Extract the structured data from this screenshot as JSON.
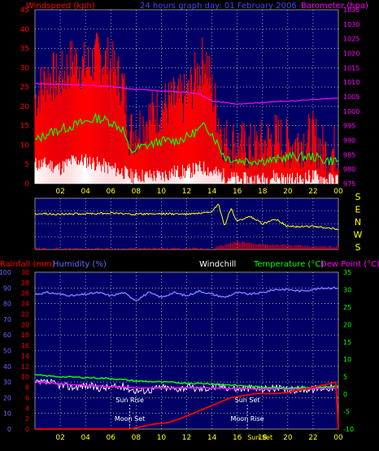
{
  "colors": {
    "background": "#000000",
    "plot_bg": "#000066",
    "grid": "#ffffff",
    "wind_gust": "#ff0000",
    "wind_avg": "#00ff00",
    "wind_low": "#ffffff",
    "barometer": "#ff00ff",
    "direction": "#ffff00",
    "humidity": "#7777ff",
    "temperature": "#00ff00",
    "dewpoint": "#ff00ff",
    "windchill": "#ffffff",
    "rainfall": "#ff0000",
    "ticks_x": "#ffff00",
    "axis_left1": "#ff0000",
    "axis_left2": "#6666ff",
    "axis_right": "#00ff00",
    "baro_axis": "#ff00ff"
  },
  "chart_data": [
    {
      "type": "line",
      "header": {
        "left": "Windspeed (kph)",
        "center": "24 hours graph day: 01 February 2006",
        "right": "Barometer (hpa)"
      },
      "x_ticks": [
        "02",
        "04",
        "06",
        "08",
        "10",
        "12",
        "14",
        "16",
        "18",
        "20",
        "22",
        "00"
      ],
      "y_left": {
        "label": "Windspeed (kph)",
        "range": [
          0,
          45
        ],
        "ticks": [
          "0",
          "5",
          "10",
          "15",
          "20",
          "25",
          "30",
          "35",
          "40",
          "45"
        ]
      },
      "y_right": {
        "label": "Barometer (hpa)",
        "range": [
          975,
          1035
        ],
        "ticks": [
          "975",
          "980",
          "985",
          "990",
          "995",
          "1000",
          "1005",
          "1010",
          "1015",
          "1020",
          "1025",
          "1030",
          "1035"
        ]
      },
      "series": [
        {
          "name": "gust",
          "x": [
            0,
            1,
            2,
            3,
            4,
            5,
            6,
            7,
            7.5,
            8,
            9,
            10,
            11,
            12,
            13,
            13.5,
            14,
            15,
            16,
            17,
            18,
            19,
            20,
            21,
            22,
            23,
            24
          ],
          "values": [
            22,
            28,
            27,
            32,
            30,
            33,
            31,
            25,
            13,
            14,
            17,
            20,
            21,
            22,
            30,
            33,
            24,
            11,
            10,
            9,
            10,
            12,
            10,
            11,
            12,
            8,
            9
          ]
        },
        {
          "name": "average",
          "x": [
            0,
            1,
            2,
            3,
            4,
            5,
            6,
            7,
            7.5,
            8,
            9,
            10,
            11,
            12,
            13,
            13.5,
            14,
            15,
            16,
            17,
            18,
            19,
            20,
            21,
            22,
            23,
            24
          ],
          "values": [
            11,
            13,
            14,
            15,
            16,
            17,
            16,
            14,
            8,
            9,
            10,
            11,
            11,
            12,
            14,
            15,
            13,
            7,
            6,
            6,
            6,
            6,
            7,
            7,
            7,
            6,
            6
          ]
        },
        {
          "name": "minimum",
          "x": [
            0,
            1,
            2,
            3,
            4,
            5,
            6,
            7,
            7.5,
            8,
            9,
            10,
            11,
            12,
            13,
            13.5,
            14,
            15,
            16,
            17,
            18,
            19,
            20,
            21,
            22,
            23,
            24
          ],
          "values": [
            5,
            5,
            4,
            6,
            6,
            5,
            4,
            3,
            2,
            2,
            2,
            2,
            3,
            3,
            4,
            4,
            3,
            2,
            1,
            1,
            1,
            2,
            1,
            1,
            2,
            1,
            1
          ]
        },
        {
          "name": "barometer",
          "x": [
            0,
            2,
            4,
            6,
            8,
            10,
            12,
            13,
            14,
            16,
            18,
            20,
            22,
            24
          ],
          "values": [
            1009.5,
            1009.3,
            1009,
            1008.5,
            1007.5,
            1007,
            1006.5,
            1006,
            1003.5,
            1002.5,
            1003,
            1003.5,
            1004,
            1004.5
          ]
        }
      ]
    },
    {
      "type": "line",
      "compass_labels": [
        "S",
        "E",
        "N",
        "W",
        "S"
      ],
      "x_ticks": [
        "02",
        "04",
        "06",
        "08",
        "10",
        "12",
        "14",
        "16",
        "18",
        "20",
        "22",
        "00"
      ],
      "series": [
        {
          "name": "direction",
          "x": [
            0,
            2,
            4,
            6,
            8,
            10,
            12,
            14,
            14.5,
            15,
            15.5,
            16,
            17,
            18,
            19,
            20,
            22,
            24
          ],
          "values": [
            0.3,
            0.31,
            0.3,
            0.29,
            0.31,
            0.3,
            0.31,
            0.28,
            0.1,
            0.55,
            0.2,
            0.45,
            0.35,
            0.5,
            0.4,
            0.55,
            0.55,
            0.6
          ]
        },
        {
          "name": "rain-rate",
          "x": [
            0,
            14,
            16,
            18,
            20,
            22,
            24
          ],
          "values": [
            0.02,
            0.02,
            0.15,
            0.1,
            0.08,
            0.06,
            0.05
          ]
        }
      ]
    },
    {
      "type": "line",
      "header": {
        "rain": "Rainfall (mm)",
        "humidity": "Humidity (%)",
        "windchill": "Windchill",
        "temperature": "Temperature (°C)",
        "dewpoint": "Dew Point (°C)"
      },
      "x_ticks": [
        "02",
        "04",
        "06",
        "08",
        "10",
        "12",
        "14",
        "16",
        "18",
        "20",
        "22",
        "00"
      ],
      "y_humidity": {
        "label": "Humidity (%)",
        "range": [
          0,
          100
        ],
        "ticks": [
          "0",
          "10",
          "20",
          "30",
          "40",
          "50",
          "60",
          "70",
          "80",
          "90",
          "100"
        ]
      },
      "y_rain": {
        "label": "Rainfall (mm)",
        "range": [
          0,
          30
        ],
        "ticks": [
          "0",
          "2",
          "4",
          "6",
          "8",
          "10",
          "12",
          "14",
          "16",
          "18",
          "20",
          "22",
          "24",
          "26",
          "28",
          "30"
        ]
      },
      "y_temp": {
        "label": "Temperature (°C)",
        "range": [
          -10,
          35
        ],
        "ticks": [
          "-10",
          "-5",
          "0",
          "5",
          "10",
          "15",
          "20",
          "25",
          "30",
          "35"
        ]
      },
      "annotations": [
        {
          "text": "Sun Rise",
          "x": 7.5
        },
        {
          "text": "Moon Set",
          "x": 7.5
        },
        {
          "text": "Sun Set",
          "x": 16.8
        },
        {
          "text": "Moon Rise",
          "x": 16.8
        },
        {
          "text": "Sun Set",
          "x": 17.8
        }
      ],
      "series": [
        {
          "name": "humidity",
          "x": [
            0,
            1,
            2,
            3,
            4,
            5,
            6,
            7,
            8,
            9,
            10,
            11,
            12,
            13,
            14,
            15,
            16,
            17,
            18,
            19,
            20,
            21,
            22,
            23,
            24
          ],
          "values": [
            86,
            87,
            86,
            85,
            86,
            87,
            85,
            87,
            82,
            87,
            84,
            87,
            85,
            88,
            86,
            84,
            87,
            86,
            87,
            89,
            89,
            88,
            89,
            90,
            90
          ]
        },
        {
          "name": "temperature",
          "x": [
            0,
            2,
            4,
            6,
            8,
            10,
            12,
            14,
            16,
            18,
            20,
            22,
            24
          ],
          "values": [
            5.5,
            5,
            4.8,
            4.5,
            3.8,
            3.5,
            3.2,
            3,
            2.5,
            2,
            1.8,
            2,
            2.2
          ]
        },
        {
          "name": "dewpoint",
          "x": [
            0,
            2,
            4,
            6,
            8,
            10,
            12,
            14,
            16,
            18,
            20,
            22,
            24
          ],
          "values": [
            3.5,
            3,
            2.5,
            2.2,
            1.8,
            1.8,
            1.8,
            1.8,
            1.6,
            1.5,
            1.5,
            1.6,
            1.7
          ]
        },
        {
          "name": "windchill",
          "x": [
            0,
            1,
            2,
            3,
            4,
            5,
            6,
            7,
            8,
            9,
            10,
            11,
            12,
            13,
            14,
            15,
            16,
            17,
            18,
            19,
            20,
            21,
            22,
            23,
            24
          ],
          "values": [
            3,
            3.5,
            2.5,
            2,
            2.5,
            1.8,
            2,
            2.2,
            1,
            1.2,
            2,
            1.5,
            2,
            1.5,
            2,
            2.2,
            1.5,
            1.8,
            1.5,
            1.8,
            1,
            1.5,
            1.5,
            2,
            1.8
          ]
        },
        {
          "name": "rainfall",
          "x": [
            0,
            7.5,
            8.5,
            9.5,
            10.5,
            11.5,
            12.5,
            13.5,
            14.5,
            15.5,
            16.5,
            17.5,
            19,
            20,
            21,
            22,
            23,
            23.8,
            24
          ],
          "values": [
            0,
            0,
            0.5,
            1,
            1.2,
            2,
            3,
            4,
            5,
            6,
            6.4,
            6.8,
            6.8,
            7,
            7.5,
            8,
            8.5,
            9,
            0
          ]
        }
      ]
    }
  ]
}
